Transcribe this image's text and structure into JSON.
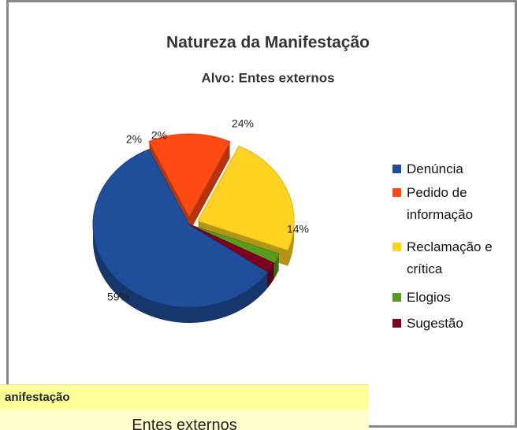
{
  "chart_data": {
    "type": "pie",
    "title": "Natureza da Manifestação",
    "subtitle": "Alvo: Entes externos",
    "categories": [
      "Denúncia",
      "Pedido de informação",
      "Reclamação e crítica",
      "Elogios",
      "Sugestão"
    ],
    "values": [
      59,
      14,
      24,
      2,
      2
    ],
    "value_labels": [
      "59%",
      "14%",
      "24%",
      "2%",
      "2%"
    ],
    "colors": [
      "#1f4e9a",
      "#ff4a14",
      "#ffd320",
      "#579d1c",
      "#7e0021"
    ],
    "legend": "right"
  },
  "sheet_overlay": {
    "header": "anifestação",
    "cell": "Entes externos"
  }
}
